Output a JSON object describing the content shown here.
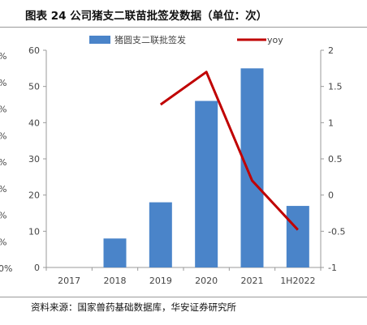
{
  "title": "图表 24 公司猪支二联苗批签发数据（单位：次）",
  "source": "资料来源：国家兽药基础数据库，华安证券研究所",
  "colors": {
    "bar": "#4a84c9",
    "line": "#c00000",
    "axis": "#9a9a9a"
  },
  "cutoff_left_labels": [
    "%",
    "%",
    "%",
    "%",
    "%",
    "%",
    "%",
    "%",
    "0%"
  ],
  "chart_data": {
    "type": "bar",
    "categories": [
      "2017",
      "2018",
      "2019",
      "2020",
      "2021",
      "1H2022"
    ],
    "series": [
      {
        "name": "猪圆支二联批签发",
        "type": "bar",
        "axis": "left",
        "values": [
          0,
          8,
          18,
          46,
          55,
          17
        ]
      },
      {
        "name": "yoy",
        "type": "line",
        "axis": "right",
        "values": [
          null,
          null,
          1.25,
          1.7,
          0.2,
          -0.48
        ]
      }
    ],
    "y_left": {
      "min": 0,
      "max": 60,
      "ticks": [
        "0",
        "10",
        "20",
        "30",
        "40",
        "50",
        "60"
      ]
    },
    "y_right": {
      "min": -1,
      "max": 2,
      "ticks": [
        "-1",
        "-0.5",
        "0",
        "0.5",
        "1",
        "1.5",
        "2"
      ]
    },
    "legend": "top",
    "grid": false
  }
}
